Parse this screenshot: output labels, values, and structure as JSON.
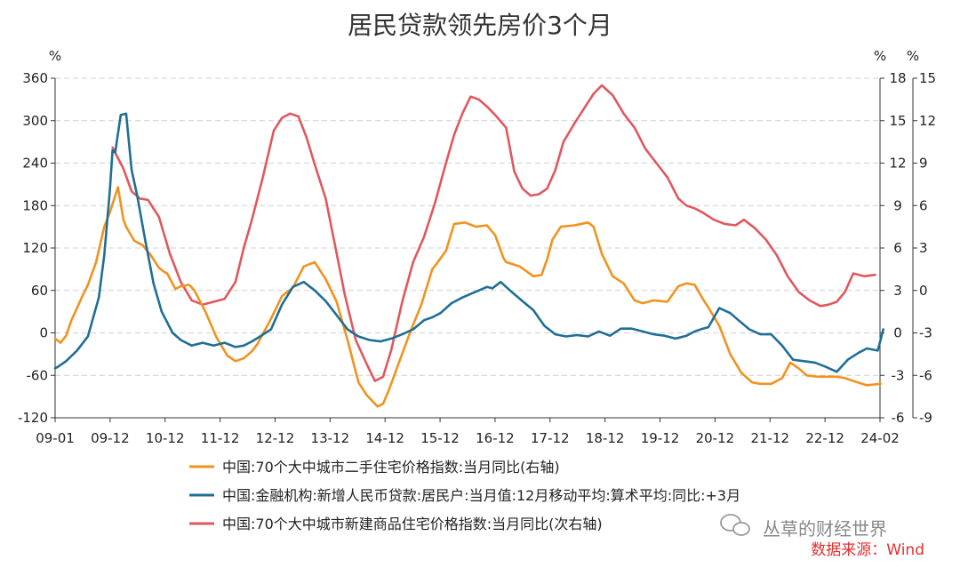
{
  "chart_data": {
    "type": "line",
    "title": "居民贷款领先房价3个月",
    "left_axis": {
      "unit": "%",
      "ylim": [
        -120,
        360
      ],
      "ticks": [
        "-120",
        "-60",
        "0",
        "60",
        "120",
        "180",
        "240",
        "300",
        "360"
      ]
    },
    "right_axis": {
      "unit": "%",
      "ylim": [
        -6,
        18
      ],
      "ticks": [
        "-6",
        "-3",
        "0",
        "3",
        "6",
        "9",
        "12",
        "15",
        "18"
      ]
    },
    "right2_axis": {
      "unit": "%",
      "ylim": [
        -9,
        15
      ],
      "ticks": [
        "-9",
        "-6",
        "-3",
        "0",
        "3",
        "6",
        "9",
        "12",
        "15"
      ]
    },
    "x_ticks": [
      "09-01",
      "09-12",
      "10-12",
      "11-12",
      "12-12",
      "13-12",
      "14-12",
      "15-12",
      "16-12",
      "17-12",
      "18-12",
      "19-12",
      "20-12",
      "21-12",
      "22-12",
      "24-02"
    ],
    "series": [
      {
        "name": "中国:70个大中城市二手住宅价格指数:当月同比(右轴)",
        "axis": "right",
        "color": "#F2921E",
        "x": [
          2009.0,
          2009.1,
          2009.2,
          2009.3,
          2009.5,
          2009.6,
          2009.75,
          2009.9,
          2010.0,
          2010.1,
          2010.15,
          2010.25,
          2010.3,
          2010.45,
          2010.6,
          2010.75,
          2010.9,
          2011.0,
          2011.05,
          2011.2,
          2011.3,
          2011.45,
          2011.55,
          2011.75,
          2011.95,
          2012.15,
          2012.3,
          2012.45,
          2012.6,
          2012.7,
          2012.95,
          2013.15,
          2013.35,
          2013.55,
          2013.75,
          2013.95,
          2014.15,
          2014.35,
          2014.55,
          2014.7,
          2014.9,
          2015.0,
          2015.1,
          2015.3,
          2015.5,
          2015.7,
          2015.9,
          2016.0,
          2016.15,
          2016.3,
          2016.5,
          2016.7,
          2016.9,
          2017.05,
          2017.2,
          2017.25,
          2017.5,
          2017.75,
          2017.9,
          2018.0,
          2018.1,
          2018.25,
          2018.5,
          2018.75,
          2018.85,
          2019.0,
          2019.2,
          2019.4,
          2019.6,
          2019.75,
          2019.95,
          2020.2,
          2020.4,
          2020.55,
          2020.7,
          2020.85,
          2020.95,
          2021.15,
          2021.35,
          2021.55,
          2021.75,
          2021.9,
          2022.1,
          2022.3,
          2022.45,
          2022.6,
          2022.75,
          2022.95,
          2023.1,
          2023.3,
          2023.45,
          2023.6,
          2023.85,
          2024.1
        ],
        "y": [
          -0.4,
          -0.7,
          -0.2,
          0.9,
          2.6,
          3.4,
          5.0,
          7.5,
          8.5,
          9.7,
          10.3,
          8.0,
          7.5,
          6.5,
          6.2,
          5.5,
          4.6,
          4.3,
          4.2,
          3.1,
          3.3,
          3.4,
          3.0,
          1.5,
          -0.3,
          -1.6,
          -2.0,
          -1.8,
          -1.3,
          -0.8,
          1.0,
          2.6,
          3.2,
          4.7,
          5.0,
          3.8,
          2.2,
          -0.5,
          -3.5,
          -4.4,
          -5.2,
          -5.0,
          -4.1,
          -2.0,
          0.1,
          2.0,
          4.5,
          5.0,
          5.8,
          7.7,
          7.8,
          7.5,
          7.6,
          6.9,
          5.3,
          5.0,
          4.7,
          4.0,
          4.1,
          5.2,
          6.6,
          7.5,
          7.6,
          7.8,
          7.5,
          5.6,
          4.0,
          3.5,
          2.3,
          2.1,
          2.3,
          2.2,
          3.3,
          3.5,
          3.4,
          2.4,
          1.8,
          0.5,
          -1.5,
          -2.8,
          -3.5,
          -3.6,
          -3.6,
          -3.2,
          -2.1,
          -2.5,
          -3.0,
          -3.1,
          -3.1,
          -3.1,
          -3.2,
          -3.4,
          -3.7,
          -3.6
        ]
      },
      {
        "name": "中国:金融机构:新增人民币贷款:居民户:当月值:12月移动平均:算术平均:同比:+3月",
        "axis": "left",
        "color": "#1F6E96",
        "x": [
          2009.0,
          2009.05,
          2009.2,
          2009.4,
          2009.6,
          2009.8,
          2009.9,
          2010.0,
          2010.05,
          2010.1,
          2010.2,
          2010.3,
          2010.4,
          2010.5,
          2010.65,
          2010.8,
          2010.95,
          2011.15,
          2011.3,
          2011.5,
          2011.7,
          2011.9,
          2012.1,
          2012.3,
          2012.45,
          2012.6,
          2012.75,
          2012.95,
          2013.15,
          2013.35,
          2013.55,
          2013.75,
          2013.95,
          2014.15,
          2014.35,
          2014.55,
          2014.75,
          2014.95,
          2015.15,
          2015.35,
          2015.55,
          2015.75,
          2015.9,
          2016.05,
          2016.25,
          2016.45,
          2016.6,
          2016.75,
          2016.9,
          2017.0,
          2017.15,
          2017.35,
          2017.55,
          2017.75,
          2017.95,
          2018.15,
          2018.35,
          2018.55,
          2018.75,
          2018.95,
          2019.15,
          2019.35,
          2019.55,
          2019.75,
          2019.95,
          2020.15,
          2020.35,
          2020.55,
          2020.7,
          2020.85,
          2020.95,
          2021.15,
          2021.35,
          2021.5,
          2021.7,
          2021.9,
          2022.1,
          2022.3,
          2022.5,
          2022.7,
          2022.9,
          2023.1,
          2023.3,
          2023.5,
          2023.7,
          2023.85,
          2024.05,
          2024.15
        ],
        "y": [
          -50,
          -48,
          -40,
          -25,
          -5,
          50,
          110,
          200,
          258,
          255,
          308,
          310,
          230,
          195,
          130,
          70,
          30,
          0,
          -10,
          -18,
          -14,
          -18,
          -14,
          -20,
          -18,
          -12,
          -5,
          5,
          40,
          65,
          72,
          60,
          45,
          25,
          5,
          -5,
          -10,
          -12,
          -8,
          -2,
          5,
          18,
          22,
          28,
          42,
          50,
          55,
          60,
          65,
          63,
          72,
          58,
          45,
          32,
          10,
          -2,
          -5,
          -3,
          -5,
          2,
          -4,
          6,
          6,
          2,
          -2,
          -4,
          -8,
          -4,
          2,
          6,
          8,
          35,
          28,
          18,
          5,
          -2,
          -2,
          -18,
          -38,
          -40,
          -42,
          -48,
          -55,
          -38,
          -28,
          -22,
          -25,
          5
        ]
      },
      {
        "name": "中国:70个大中城市新建商品住宅价格指数:当月同比(次右轴)",
        "axis": "right2",
        "color": "#E0585E",
        "x": [
          2010.05,
          2010.25,
          2010.4,
          2010.55,
          2010.7,
          2010.9,
          2011.1,
          2011.3,
          2011.5,
          2011.7,
          2011.9,
          2012.1,
          2012.3,
          2012.45,
          2012.6,
          2012.8,
          2013.0,
          2013.15,
          2013.3,
          2013.45,
          2013.6,
          2013.75,
          2013.95,
          2014.1,
          2014.3,
          2014.5,
          2014.7,
          2014.85,
          2015.0,
          2015.15,
          2015.35,
          2015.55,
          2015.75,
          2015.95,
          2016.15,
          2016.3,
          2016.45,
          2016.6,
          2016.75,
          2016.9,
          2017.05,
          2017.25,
          2017.4,
          2017.55,
          2017.7,
          2017.85,
          2018.0,
          2018.15,
          2018.3,
          2018.5,
          2018.7,
          2018.85,
          2019.0,
          2019.2,
          2019.4,
          2019.6,
          2019.8,
          2020.0,
          2020.2,
          2020.4,
          2020.55,
          2020.7,
          2020.85,
          2021.05,
          2021.25,
          2021.45,
          2021.6,
          2021.8,
          2022.0,
          2022.2,
          2022.4,
          2022.6,
          2022.8,
          2023.0,
          2023.15,
          2023.3,
          2023.45,
          2023.6,
          2023.8,
          2024.0
        ],
        "y": [
          10.1,
          8.6,
          7.0,
          6.5,
          6.4,
          5.2,
          2.6,
          0.6,
          -0.7,
          -1.0,
          -0.8,
          -0.6,
          0.6,
          3.0,
          5.0,
          8.0,
          11.3,
          12.2,
          12.5,
          12.3,
          10.8,
          8.9,
          6.5,
          3.6,
          -0.3,
          -3.5,
          -5.2,
          -6.4,
          -6.1,
          -4.2,
          -0.8,
          2.0,
          3.8,
          6.2,
          9.0,
          11.0,
          12.5,
          13.7,
          13.5,
          13.0,
          12.4,
          11.5,
          8.4,
          7.2,
          6.7,
          6.8,
          7.2,
          8.5,
          10.5,
          11.8,
          13.0,
          13.9,
          14.5,
          13.8,
          12.5,
          11.5,
          10.0,
          9.0,
          8.0,
          6.5,
          6.0,
          5.8,
          5.5,
          5.0,
          4.7,
          4.6,
          5.0,
          4.4,
          3.6,
          2.5,
          1.0,
          -0.1,
          -0.7,
          -1.1,
          -1.0,
          -0.8,
          -0.1,
          1.2,
          1.0,
          1.1
        ]
      }
    ]
  },
  "legend": [
    {
      "label": "中国:70个大中城市二手住宅价格指数:当月同比(右轴)",
      "color": "#F2921E"
    },
    {
      "label": "中国:金融机构:新增人民币贷款:居民户:当月值:12月移动平均:算术平均:同比:+3月",
      "color": "#1F6E96"
    },
    {
      "label": "中国:70个大中城市新建商品住宅价格指数:当月同比(次右轴)",
      "color": "#E0585E"
    }
  ],
  "watermark": "丛草的财经世界",
  "source": "数据来源：Wind"
}
